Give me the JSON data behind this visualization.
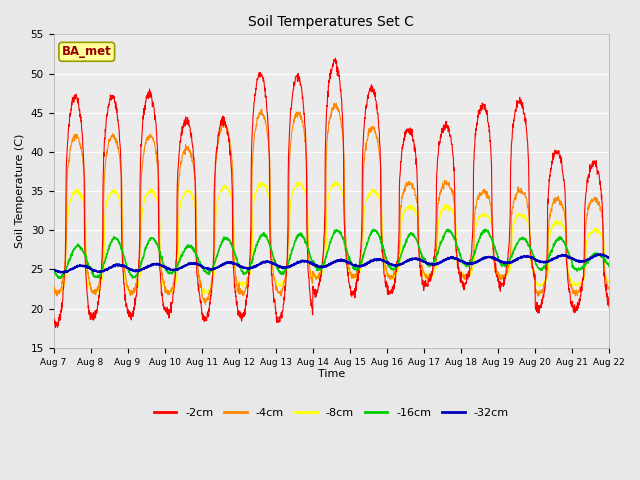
{
  "title": "Soil Temperatures Set C",
  "xlabel": "Time",
  "ylabel": "Soil Temperature (C)",
  "ylim": [
    15,
    55
  ],
  "bg_color": "#e8e8e8",
  "plot_bg_color": "#ebebeb",
  "series_colors": {
    "-2cm": "#ff0000",
    "-4cm": "#ff8800",
    "-8cm": "#ffff00",
    "-16cm": "#00cc00",
    "-32cm": "#0000bb"
  },
  "label_box_text": "BA_met",
  "label_box_facecolor": "#ffff99",
  "label_box_edgecolor": "#999900",
  "label_box_textcolor": "#990000",
  "tick_dates": [
    "Aug 7",
    "Aug 8",
    "Aug 9",
    "Aug 10",
    "Aug 11",
    "Aug 12",
    "Aug 13",
    "Aug 14",
    "Aug 15",
    "Aug 16",
    "Aug 17",
    "Aug 18",
    "Aug 19",
    "Aug 20",
    "Aug 21",
    "Aug 22"
  ],
  "yticks": [
    15,
    20,
    25,
    30,
    35,
    40,
    45,
    50,
    55
  ]
}
